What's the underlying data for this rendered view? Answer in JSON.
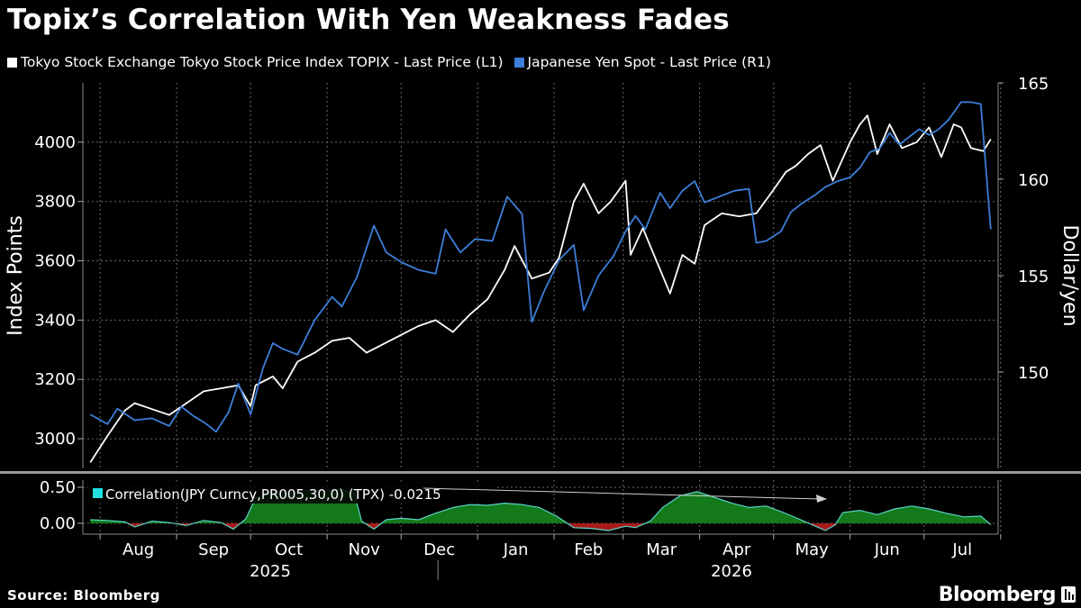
{
  "title": "Topix’s Correlation With Yen Weakness Fades",
  "legend": [
    {
      "label": "Tokyo Stock Exchange Tokyo Stock Price Index TOPIX - Last Price (L1)",
      "color": "#ffffff"
    },
    {
      "label": "Japanese Yen Spot - Last Price (R1)",
      "color": "#3d7fd9"
    }
  ],
  "source": "Source: Bloomberg",
  "brand": "Bloomberg",
  "colors": {
    "topix": "#ffffff",
    "yen": "#3d7fd9",
    "corr_pos": "#14801c",
    "corr_neg": "#b01c1c",
    "corr_line": "#5bd6c9",
    "grid": "#6b6b6b"
  },
  "chart_data": [
    {
      "type": "line",
      "title": "Topix’s Correlation With Yen Weakness Fades",
      "ylabel_left": "Index Points",
      "ylabel_right": "Dollar/yen",
      "ylim_left": [
        2900,
        4200
      ],
      "ylim_right": [
        145,
        165
      ],
      "yticks_left": [
        3000,
        3200,
        3400,
        3600,
        3800,
        4000
      ],
      "yticks_right": [
        150,
        155,
        160,
        165
      ],
      "xlabels": [
        "Aug",
        "Sep",
        "Oct",
        "Nov",
        "Dec",
        "Jan",
        "Feb",
        "Mar",
        "Apr",
        "May",
        "Jun",
        "Jul"
      ],
      "years": [
        "2025",
        "2026"
      ],
      "grid": true,
      "series": [
        {
          "name": "Tokyo Stock Exchange Tokyo Stock Price Index TOPIX - Last Price (L1)",
          "axis": "left",
          "color": "#ffffff",
          "points": [
            [
              "2025-07-28",
              2920
            ],
            [
              "2025-08-04",
              3010
            ],
            [
              "2025-08-11",
              3095
            ],
            [
              "2025-08-15",
              3120
            ],
            [
              "2025-08-22",
              3100
            ],
            [
              "2025-08-29",
              3080
            ],
            [
              "2025-09-05",
              3120
            ],
            [
              "2025-09-12",
              3160
            ],
            [
              "2025-09-19",
              3170
            ],
            [
              "2025-09-26",
              3180
            ],
            [
              "2025-10-01",
              3110
            ],
            [
              "2025-10-03",
              3180
            ],
            [
              "2025-10-10",
              3210
            ],
            [
              "2025-10-14",
              3170
            ],
            [
              "2025-10-20",
              3260
            ],
            [
              "2025-10-27",
              3290
            ],
            [
              "2025-11-03",
              3330
            ],
            [
              "2025-11-10",
              3340
            ],
            [
              "2025-11-17",
              3290
            ],
            [
              "2025-11-24",
              3320
            ],
            [
              "2025-12-01",
              3350
            ],
            [
              "2025-12-08",
              3380
            ],
            [
              "2025-12-15",
              3400
            ],
            [
              "2025-12-22",
              3360
            ],
            [
              "2025-12-29",
              3420
            ],
            [
              "2026-01-05",
              3470
            ],
            [
              "2026-01-12",
              3570
            ],
            [
              "2026-01-16",
              3650
            ],
            [
              "2026-01-23",
              3540
            ],
            [
              "2026-01-30",
              3560
            ],
            [
              "2026-02-03",
              3610
            ],
            [
              "2026-02-09",
              3800
            ],
            [
              "2026-02-13",
              3860
            ],
            [
              "2026-02-19",
              3760
            ],
            [
              "2026-02-24",
              3800
            ],
            [
              "2026-03-02",
              3870
            ],
            [
              "2026-03-04",
              3620
            ],
            [
              "2026-03-09",
              3710
            ],
            [
              "2026-03-16",
              3570
            ],
            [
              "2026-03-20",
              3490
            ],
            [
              "2026-03-25",
              3620
            ],
            [
              "2026-03-30",
              3590
            ],
            [
              "2026-04-03",
              3720
            ],
            [
              "2026-04-10",
              3760
            ],
            [
              "2026-04-17",
              3750
            ],
            [
              "2026-04-24",
              3760
            ],
            [
              "2026-05-01",
              3840
            ],
            [
              "2026-05-06",
              3900
            ],
            [
              "2026-05-10",
              3920
            ],
            [
              "2026-05-15",
              3960
            ],
            [
              "2026-05-20",
              3990
            ],
            [
              "2026-05-25",
              3870
            ],
            [
              "2026-06-01",
              4000
            ],
            [
              "2026-06-05",
              4060
            ],
            [
              "2026-06-08",
              4090
            ],
            [
              "2026-06-12",
              3960
            ],
            [
              "2026-06-17",
              4060
            ],
            [
              "2026-06-22",
              3980
            ],
            [
              "2026-06-28",
              4000
            ],
            [
              "2026-07-03",
              4050
            ],
            [
              "2026-07-08",
              3950
            ],
            [
              "2026-07-13",
              4060
            ],
            [
              "2026-07-16",
              4050
            ],
            [
              "2026-07-20",
              3980
            ],
            [
              "2026-07-25",
              3970
            ],
            [
              "2026-07-28",
              4010
            ]
          ]
        },
        {
          "name": "Japanese Yen Spot - Last Price (R1)",
          "axis": "right",
          "color": "#3d7fd9",
          "points": [
            [
              "2025-07-28",
              147.8
            ],
            [
              "2025-08-04",
              147.3
            ],
            [
              "2025-08-08",
              148.1
            ],
            [
              "2025-08-15",
              147.5
            ],
            [
              "2025-08-22",
              147.6
            ],
            [
              "2025-08-29",
              147.2
            ],
            [
              "2025-09-03",
              148.2
            ],
            [
              "2025-09-08",
              147.7
            ],
            [
              "2025-09-12",
              147.4
            ],
            [
              "2025-09-17",
              146.9
            ],
            [
              "2025-09-22",
              147.9
            ],
            [
              "2025-09-26",
              149.4
            ],
            [
              "2025-10-01",
              147.8
            ],
            [
              "2025-10-06",
              150.2
            ],
            [
              "2025-10-10",
              151.5
            ],
            [
              "2025-10-14",
              151.2
            ],
            [
              "2025-10-20",
              150.9
            ],
            [
              "2025-10-27",
              152.7
            ],
            [
              "2025-11-03",
              153.9
            ],
            [
              "2025-11-07",
              153.4
            ],
            [
              "2025-11-13",
              154.9
            ],
            [
              "2025-11-20",
              157.6
            ],
            [
              "2025-11-25",
              156.2
            ],
            [
              "2025-12-01",
              155.7
            ],
            [
              "2025-12-08",
              155.3
            ],
            [
              "2025-12-15",
              155.1
            ],
            [
              "2025-12-19",
              157.4
            ],
            [
              "2025-12-25",
              156.2
            ],
            [
              "2025-12-31",
              156.9
            ],
            [
              "2026-01-07",
              156.8
            ],
            [
              "2026-01-13",
              159.1
            ],
            [
              "2026-01-19",
              158.2
            ],
            [
              "2026-01-23",
              152.6
            ],
            [
              "2026-01-28",
              154.2
            ],
            [
              "2026-02-03",
              155.8
            ],
            [
              "2026-02-09",
              156.6
            ],
            [
              "2026-02-13",
              153.2
            ],
            [
              "2026-02-19",
              155.0
            ],
            [
              "2026-02-25",
              156.0
            ],
            [
              "2026-03-02",
              157.3
            ],
            [
              "2026-03-06",
              158.1
            ],
            [
              "2026-03-10",
              157.4
            ],
            [
              "2026-03-16",
              159.3
            ],
            [
              "2026-03-20",
              158.5
            ],
            [
              "2026-03-25",
              159.4
            ],
            [
              "2026-03-30",
              159.9
            ],
            [
              "2026-04-03",
              158.8
            ],
            [
              "2026-04-09",
              159.1
            ],
            [
              "2026-04-15",
              159.4
            ],
            [
              "2026-04-21",
              159.5
            ],
            [
              "2026-04-24",
              156.7
            ],
            [
              "2026-04-28",
              156.8
            ],
            [
              "2026-05-04",
              157.3
            ],
            [
              "2026-05-08",
              158.3
            ],
            [
              "2026-05-12",
              158.7
            ],
            [
              "2026-05-18",
              159.2
            ],
            [
              "2026-05-22",
              159.6
            ],
            [
              "2026-05-27",
              159.9
            ],
            [
              "2026-06-01",
              160.1
            ],
            [
              "2026-06-05",
              160.6
            ],
            [
              "2026-06-09",
              161.4
            ],
            [
              "2026-06-13",
              161.6
            ],
            [
              "2026-06-17",
              162.4
            ],
            [
              "2026-06-21",
              161.8
            ],
            [
              "2026-06-25",
              162.2
            ],
            [
              "2026-06-29",
              162.6
            ],
            [
              "2026-07-03",
              162.3
            ],
            [
              "2026-07-07",
              162.6
            ],
            [
              "2026-07-11",
              163.1
            ],
            [
              "2026-07-16",
              164.0
            ],
            [
              "2026-07-20",
              164.0
            ],
            [
              "2026-07-24",
              163.9
            ],
            [
              "2026-07-28",
              157.4
            ]
          ]
        }
      ]
    },
    {
      "type": "area",
      "label": "Correlation(JPY Curncy,PR005,30,0) (TPX) -0.0215",
      "ylim": [
        -0.15,
        0.6
      ],
      "yticks": [
        0.0,
        0.5
      ],
      "ytick_labels": [
        "0.00",
        "0.50"
      ],
      "series": [
        {
          "points": [
            [
              "2025-07-28",
              0.05
            ],
            [
              "2025-08-04",
              0.04
            ],
            [
              "2025-08-11",
              0.02
            ],
            [
              "2025-08-15",
              -0.05
            ],
            [
              "2025-08-22",
              0.03
            ],
            [
              "2025-08-29",
              0.01
            ],
            [
              "2025-09-05",
              -0.03
            ],
            [
              "2025-09-12",
              0.04
            ],
            [
              "2025-09-19",
              0.01
            ],
            [
              "2025-09-24",
              -0.08
            ],
            [
              "2025-09-29",
              0.06
            ],
            [
              "2025-10-03",
              0.35
            ],
            [
              "2025-10-10",
              0.45
            ],
            [
              "2025-10-17",
              0.42
            ],
            [
              "2025-10-24",
              0.46
            ],
            [
              "2025-10-31",
              0.45
            ],
            [
              "2025-11-07",
              0.47
            ],
            [
              "2025-11-12",
              0.42
            ],
            [
              "2025-11-15",
              0.03
            ],
            [
              "2025-11-20",
              -0.08
            ],
            [
              "2025-11-25",
              0.05
            ],
            [
              "2025-12-01",
              0.07
            ],
            [
              "2025-12-08",
              0.05
            ],
            [
              "2025-12-15",
              0.14
            ],
            [
              "2025-12-22",
              0.22
            ],
            [
              "2025-12-29",
              0.26
            ],
            [
              "2026-01-05",
              0.25
            ],
            [
              "2026-01-12",
              0.28
            ],
            [
              "2026-01-19",
              0.26
            ],
            [
              "2026-01-26",
              0.22
            ],
            [
              "2026-02-02",
              0.1
            ],
            [
              "2026-02-09",
              -0.06
            ],
            [
              "2026-02-16",
              -0.07
            ],
            [
              "2026-02-23",
              -0.1
            ],
            [
              "2026-03-02",
              -0.04
            ],
            [
              "2026-03-06",
              -0.06
            ],
            [
              "2026-03-12",
              0.03
            ],
            [
              "2026-03-17",
              0.22
            ],
            [
              "2026-03-24",
              0.38
            ],
            [
              "2026-03-31",
              0.44
            ],
            [
              "2026-04-07",
              0.36
            ],
            [
              "2026-04-14",
              0.28
            ],
            [
              "2026-04-21",
              0.22
            ],
            [
              "2026-04-28",
              0.24
            ],
            [
              "2026-05-05",
              0.15
            ],
            [
              "2026-05-12",
              0.05
            ],
            [
              "2026-05-18",
              -0.04
            ],
            [
              "2026-05-22",
              -0.1
            ],
            [
              "2026-05-26",
              -0.02
            ],
            [
              "2026-05-29",
              0.15
            ],
            [
              "2026-06-05",
              0.18
            ],
            [
              "2026-06-12",
              0.12
            ],
            [
              "2026-06-19",
              0.2
            ],
            [
              "2026-06-26",
              0.24
            ],
            [
              "2026-07-03",
              0.2
            ],
            [
              "2026-07-10",
              0.14
            ],
            [
              "2026-07-17",
              0.09
            ],
            [
              "2026-07-24",
              0.1
            ],
            [
              "2026-07-28",
              -0.02
            ]
          ]
        }
      ]
    }
  ]
}
